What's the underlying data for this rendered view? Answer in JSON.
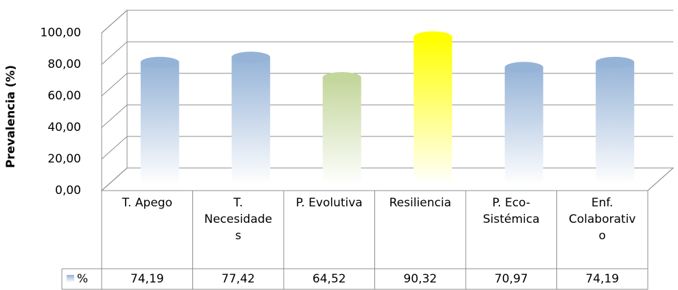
{
  "chart_data": {
    "type": "bar",
    "y_label": "Prevalencia (%)",
    "categories": [
      "T. Apego",
      "T. Necesidades",
      "P. Evolutiva",
      "Resiliencia",
      "P. Eco-Sistémica",
      "Enf. Colaborativo"
    ],
    "series": [
      {
        "name": "%",
        "color": "#95b3d7",
        "values": [
          74.19,
          77.42,
          64.52,
          90.32,
          70.97,
          74.19
        ],
        "value_labels": [
          "74,19",
          "77,42",
          "64,52",
          "90,32",
          "70,97",
          "74,19"
        ]
      }
    ],
    "colors": [
      "#95b3d7",
      "#95b3d7",
      "#c3d69b",
      "#ffff00",
      "#95b3d7",
      "#95b3d7"
    ],
    "ylim": [
      0,
      100
    ],
    "yticks": [
      {
        "value": 0,
        "label": "0,00"
      },
      {
        "value": 20,
        "label": "20,00"
      },
      {
        "value": 40,
        "label": "40,00"
      },
      {
        "value": 60,
        "label": "60,00"
      },
      {
        "value": 80,
        "label": "80,00"
      },
      {
        "value": 100,
        "label": "100,00"
      }
    ],
    "grid": true,
    "data_table": true
  }
}
